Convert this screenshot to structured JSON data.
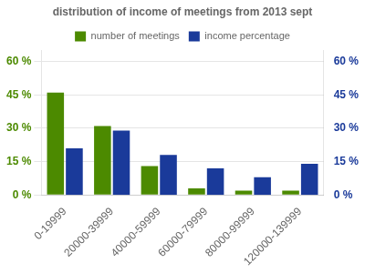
{
  "chart_data": {
    "type": "bar",
    "title": "distribution of income of meetings from 2013 sept",
    "categories": [
      "0-19999",
      "20000-39999",
      "40000-59999",
      "60000-79999",
      "80000-99999",
      "120000-139999"
    ],
    "series": [
      {
        "name": "number of meetings",
        "color": "#4c8a00",
        "values": [
          46,
          31,
          13,
          3,
          2,
          2
        ]
      },
      {
        "name": "income percentage",
        "color": "#1a3a9a",
        "values": [
          21,
          29,
          18,
          12,
          8,
          14
        ],
        "axis": "y2"
      }
    ],
    "ylim": [
      0,
      65
    ],
    "yticks": [
      {
        "value": 0,
        "label": "0 %"
      },
      {
        "value": 15,
        "label": "15 %"
      },
      {
        "value": 30,
        "label": "30 %"
      },
      {
        "value": 45,
        "label": "45 %"
      },
      {
        "value": 60,
        "label": "60 %"
      }
    ],
    "y2lim": [
      0,
      65
    ],
    "y2ticks": [
      {
        "value": 0,
        "label": "0 %"
      },
      {
        "value": 15,
        "label": "15 %"
      },
      {
        "value": 30,
        "label": "30 %"
      },
      {
        "value": 45,
        "label": "45 %"
      },
      {
        "value": 60,
        "label": "60 %"
      }
    ],
    "grid": true,
    "legend": "top"
  }
}
